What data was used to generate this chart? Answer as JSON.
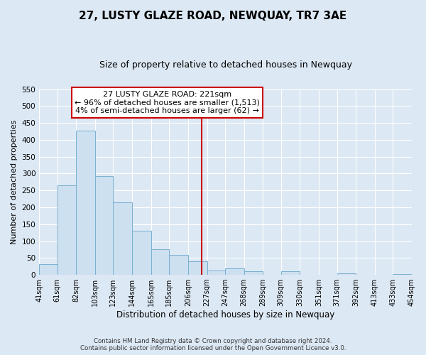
{
  "title": "27, LUSTY GLAZE ROAD, NEWQUAY, TR7 3AE",
  "subtitle": "Size of property relative to detached houses in Newquay",
  "xlabel": "Distribution of detached houses by size in Newquay",
  "ylabel": "Number of detached properties",
  "bar_edges": [
    41,
    61,
    82,
    103,
    123,
    144,
    165,
    185,
    206,
    227,
    247,
    268,
    289,
    309,
    330,
    351,
    371,
    392,
    413,
    433,
    454
  ],
  "bar_heights": [
    32,
    265,
    428,
    292,
    215,
    130,
    76,
    59,
    40,
    13,
    20,
    10,
    0,
    11,
    0,
    0,
    5,
    0,
    0,
    3
  ],
  "bar_color": "#cce0f0",
  "bar_edge_color": "#7ab0d0",
  "reference_line_x": 221,
  "reference_line_color": "#cc0000",
  "annotation_title": "27 LUSTY GLAZE ROAD: 221sqm",
  "annotation_line1": "← 96% of detached houses are smaller (1,513)",
  "annotation_line2": "4% of semi-detached houses are larger (62) →",
  "annotation_box_facecolor": "#ffffff",
  "annotation_box_edgecolor": "#cc0000",
  "ylim": [
    0,
    550
  ],
  "xlim": [
    41,
    454
  ],
  "yticks": [
    0,
    50,
    100,
    150,
    200,
    250,
    300,
    350,
    400,
    450,
    500,
    550
  ],
  "tick_labels": [
    "41sqm",
    "61sqm",
    "82sqm",
    "103sqm",
    "123sqm",
    "144sqm",
    "165sqm",
    "185sqm",
    "206sqm",
    "227sqm",
    "247sqm",
    "268sqm",
    "289sqm",
    "309sqm",
    "330sqm",
    "351sqm",
    "371sqm",
    "392sqm",
    "413sqm",
    "433sqm",
    "454sqm"
  ],
  "footer_line1": "Contains HM Land Registry data © Crown copyright and database right 2024.",
  "footer_line2": "Contains public sector information licensed under the Open Government Licence v3.0.",
  "background_color": "#dce8f4",
  "plot_background_color": "#dce8f4",
  "title_fontsize": 11,
  "subtitle_fontsize": 9,
  "ylabel_fontsize": 8,
  "xlabel_fontsize": 8.5,
  "tick_fontsize": 7,
  "footer_fontsize": 6.2,
  "ann_fontsize": 8
}
